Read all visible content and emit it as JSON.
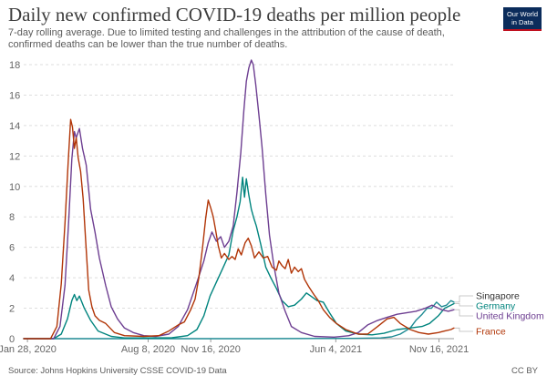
{
  "header": {
    "title": "Daily new confirmed COVID-19 deaths per million people",
    "subtitle": "7-day rolling average. Due to limited testing and challenges in the attribution of the cause of death, confirmed deaths can be lower than the true number of deaths.",
    "logo_line1": "Our World",
    "logo_line2": "in Data"
  },
  "footer": {
    "source": "Source: Johns Hopkins University CSSE COVID-19 Data",
    "license": "CC BY"
  },
  "chart_data": {
    "type": "line",
    "title": "Daily new confirmed COVID-19 deaths per million people",
    "subtitle": "7-day rolling average. Due to limited testing and challenges in the attribution of the cause of death, confirmed deaths can be lower than the true number of deaths.",
    "xlabel": "",
    "ylabel": "",
    "ylim": [
      0,
      18
    ],
    "xlim": [
      "2020-01-22",
      "2021-12-10"
    ],
    "yticks": [
      0,
      2,
      4,
      6,
      8,
      10,
      12,
      14,
      16,
      18
    ],
    "xticks": [
      {
        "date": "2020-01-28",
        "label": "Jan 28, 2020"
      },
      {
        "date": "2020-08-08",
        "label": "Aug 8, 2020"
      },
      {
        "date": "2020-11-16",
        "label": "Nov 16, 2020"
      },
      {
        "date": "2021-06-04",
        "label": "Jun 4, 2021"
      },
      {
        "date": "2021-11-16",
        "label": "Nov 16, 2021"
      }
    ],
    "grid": true,
    "legend": "right (labels at line ends)",
    "series": [
      {
        "name": "Singapore",
        "color": "#1e8a93",
        "points": [
          [
            "2020-01-22",
            0
          ],
          [
            "2020-06-01",
            0
          ],
          [
            "2021-02-01",
            0
          ],
          [
            "2021-07-01",
            0.02
          ],
          [
            "2021-08-15",
            0.05
          ],
          [
            "2021-09-01",
            0.12
          ],
          [
            "2021-09-15",
            0.3
          ],
          [
            "2021-10-01",
            0.7
          ],
          [
            "2021-10-10",
            1.2
          ],
          [
            "2021-10-20",
            1.6
          ],
          [
            "2021-10-28",
            2.0
          ],
          [
            "2021-11-04",
            2.0
          ],
          [
            "2021-11-12",
            2.4
          ],
          [
            "2021-11-20",
            2.1
          ],
          [
            "2021-11-28",
            2.2
          ],
          [
            "2021-12-05",
            2.5
          ],
          [
            "2021-12-10",
            2.4
          ]
        ]
      },
      {
        "name": "Germany",
        "color": "#00847e",
        "points": [
          [
            "2020-01-22",
            0
          ],
          [
            "2020-03-10",
            0
          ],
          [
            "2020-03-22",
            0.3
          ],
          [
            "2020-04-01",
            1.3
          ],
          [
            "2020-04-08",
            2.5
          ],
          [
            "2020-04-12",
            2.9
          ],
          [
            "2020-04-16",
            2.5
          ],
          [
            "2020-04-20",
            2.8
          ],
          [
            "2020-04-28",
            2.0
          ],
          [
            "2020-05-08",
            1.2
          ],
          [
            "2020-05-20",
            0.5
          ],
          [
            "2020-06-10",
            0.15
          ],
          [
            "2020-07-01",
            0.05
          ],
          [
            "2020-08-01",
            0.05
          ],
          [
            "2020-09-15",
            0.06
          ],
          [
            "2020-10-10",
            0.2
          ],
          [
            "2020-10-25",
            0.6
          ],
          [
            "2020-11-05",
            1.5
          ],
          [
            "2020-11-15",
            2.8
          ],
          [
            "2020-11-25",
            3.7
          ],
          [
            "2020-12-05",
            4.6
          ],
          [
            "2020-12-15",
            5.5
          ],
          [
            "2020-12-22",
            7.1
          ],
          [
            "2020-12-28",
            8.0
          ],
          [
            "2021-01-02",
            9.0
          ],
          [
            "2021-01-06",
            10.6
          ],
          [
            "2021-01-09",
            9.3
          ],
          [
            "2021-01-12",
            10.5
          ],
          [
            "2021-01-16",
            9.4
          ],
          [
            "2021-01-20",
            8.5
          ],
          [
            "2021-01-24",
            7.9
          ],
          [
            "2021-01-28",
            7.4
          ],
          [
            "2021-02-04",
            6.2
          ],
          [
            "2021-02-12",
            4.7
          ],
          [
            "2021-02-20",
            4.0
          ],
          [
            "2021-03-01",
            3.3
          ],
          [
            "2021-03-10",
            2.5
          ],
          [
            "2021-03-20",
            2.1
          ],
          [
            "2021-03-30",
            2.2
          ],
          [
            "2021-04-10",
            2.6
          ],
          [
            "2021-04-18",
            3.0
          ],
          [
            "2021-04-25",
            2.8
          ],
          [
            "2021-05-05",
            2.5
          ],
          [
            "2021-05-15",
            2.4
          ],
          [
            "2021-05-25",
            1.7
          ],
          [
            "2021-06-05",
            1.0
          ],
          [
            "2021-06-20",
            0.5
          ],
          [
            "2021-07-10",
            0.3
          ],
          [
            "2021-08-01",
            0.25
          ],
          [
            "2021-08-20",
            0.35
          ],
          [
            "2021-09-10",
            0.6
          ],
          [
            "2021-10-01",
            0.7
          ],
          [
            "2021-10-20",
            0.8
          ],
          [
            "2021-11-01",
            1.0
          ],
          [
            "2021-11-15",
            1.5
          ],
          [
            "2021-11-25",
            2.0
          ],
          [
            "2021-12-05",
            2.2
          ],
          [
            "2021-12-10",
            2.3
          ]
        ]
      },
      {
        "name": "United Kingdom",
        "color": "#6d3e91",
        "points": [
          [
            "2020-01-22",
            0
          ],
          [
            "2020-03-10",
            0
          ],
          [
            "2020-03-20",
            0.8
          ],
          [
            "2020-03-28",
            3.5
          ],
          [
            "2020-04-03",
            7.8
          ],
          [
            "2020-04-08",
            11.8
          ],
          [
            "2020-04-12",
            13.6
          ],
          [
            "2020-04-15",
            13.2
          ],
          [
            "2020-04-20",
            13.8
          ],
          [
            "2020-04-25",
            12.5
          ],
          [
            "2020-05-01",
            11.4
          ],
          [
            "2020-05-08",
            8.5
          ],
          [
            "2020-05-15",
            7.0
          ],
          [
            "2020-05-22",
            5.3
          ],
          [
            "2020-06-01",
            3.5
          ],
          [
            "2020-06-10",
            2.1
          ],
          [
            "2020-06-20",
            1.3
          ],
          [
            "2020-07-01",
            0.7
          ],
          [
            "2020-07-15",
            0.4
          ],
          [
            "2020-08-01",
            0.2
          ],
          [
            "2020-08-20",
            0.15
          ],
          [
            "2020-09-10",
            0.3
          ],
          [
            "2020-09-25",
            0.8
          ],
          [
            "2020-10-10",
            1.9
          ],
          [
            "2020-10-25",
            3.7
          ],
          [
            "2020-11-05",
            5.1
          ],
          [
            "2020-11-12",
            6.3
          ],
          [
            "2020-11-18",
            7.0
          ],
          [
            "2020-11-25",
            6.4
          ],
          [
            "2020-12-02",
            6.7
          ],
          [
            "2020-12-08",
            6.0
          ],
          [
            "2020-12-15",
            6.4
          ],
          [
            "2020-12-22",
            7.4
          ],
          [
            "2020-12-28",
            9.6
          ],
          [
            "2021-01-03",
            12.2
          ],
          [
            "2021-01-08",
            15.0
          ],
          [
            "2021-01-12",
            16.9
          ],
          [
            "2021-01-16",
            17.8
          ],
          [
            "2021-01-20",
            18.3
          ],
          [
            "2021-01-23",
            18.0
          ],
          [
            "2021-01-27",
            16.7
          ],
          [
            "2021-02-01",
            14.7
          ],
          [
            "2021-02-06",
            12.6
          ],
          [
            "2021-02-12",
            9.5
          ],
          [
            "2021-02-18",
            6.8
          ],
          [
            "2021-02-25",
            4.8
          ],
          [
            "2021-03-05",
            3.0
          ],
          [
            "2021-03-15",
            1.8
          ],
          [
            "2021-03-25",
            0.8
          ],
          [
            "2021-04-10",
            0.4
          ],
          [
            "2021-05-01",
            0.15
          ],
          [
            "2021-06-01",
            0.1
          ],
          [
            "2021-06-25",
            0.2
          ],
          [
            "2021-07-10",
            0.4
          ],
          [
            "2021-07-25",
            0.9
          ],
          [
            "2021-08-10",
            1.2
          ],
          [
            "2021-08-25",
            1.4
          ],
          [
            "2021-09-10",
            1.6
          ],
          [
            "2021-09-25",
            1.7
          ],
          [
            "2021-10-10",
            1.8
          ],
          [
            "2021-10-25",
            2.0
          ],
          [
            "2021-11-05",
            2.2
          ],
          [
            "2021-11-20",
            1.9
          ],
          [
            "2021-12-01",
            1.8
          ],
          [
            "2021-12-10",
            1.9
          ]
        ]
      },
      {
        "name": "France",
        "color": "#b13507",
        "points": [
          [
            "2020-01-22",
            0
          ],
          [
            "2020-03-05",
            0
          ],
          [
            "2020-03-15",
            0.8
          ],
          [
            "2020-03-22",
            3.6
          ],
          [
            "2020-03-28",
            7.6
          ],
          [
            "2020-04-02",
            11.5
          ],
          [
            "2020-04-06",
            14.4
          ],
          [
            "2020-04-09",
            13.9
          ],
          [
            "2020-04-12",
            12.5
          ],
          [
            "2020-04-15",
            13.2
          ],
          [
            "2020-04-18",
            11.9
          ],
          [
            "2020-04-22",
            11.0
          ],
          [
            "2020-04-26",
            9.2
          ],
          [
            "2020-04-30",
            6.5
          ],
          [
            "2020-05-05",
            3.2
          ],
          [
            "2020-05-10",
            2.1
          ],
          [
            "2020-05-15",
            1.5
          ],
          [
            "2020-05-22",
            1.2
          ],
          [
            "2020-06-01",
            1.0
          ],
          [
            "2020-06-15",
            0.4
          ],
          [
            "2020-07-01",
            0.2
          ],
          [
            "2020-08-01",
            0.15
          ],
          [
            "2020-08-25",
            0.2
          ],
          [
            "2020-09-10",
            0.5
          ],
          [
            "2020-09-25",
            0.9
          ],
          [
            "2020-10-05",
            1.1
          ],
          [
            "2020-10-15",
            1.9
          ],
          [
            "2020-10-22",
            2.6
          ],
          [
            "2020-10-28",
            4.0
          ],
          [
            "2020-11-03",
            6.0
          ],
          [
            "2020-11-08",
            7.9
          ],
          [
            "2020-11-12",
            9.1
          ],
          [
            "2020-11-16",
            8.6
          ],
          [
            "2020-11-20",
            8.0
          ],
          [
            "2020-11-24",
            7.1
          ],
          [
            "2020-11-28",
            6.1
          ],
          [
            "2020-12-03",
            5.3
          ],
          [
            "2020-12-08",
            5.6
          ],
          [
            "2020-12-15",
            5.2
          ],
          [
            "2020-12-20",
            5.4
          ],
          [
            "2020-12-25",
            5.2
          ],
          [
            "2020-12-30",
            5.9
          ],
          [
            "2021-01-04",
            5.5
          ],
          [
            "2021-01-10",
            6.3
          ],
          [
            "2021-01-15",
            6.6
          ],
          [
            "2021-01-20",
            6.1
          ],
          [
            "2021-01-25",
            5.3
          ],
          [
            "2021-02-01",
            5.7
          ],
          [
            "2021-02-08",
            5.3
          ],
          [
            "2021-02-15",
            5.4
          ],
          [
            "2021-02-22",
            4.7
          ],
          [
            "2021-03-01",
            4.5
          ],
          [
            "2021-03-05",
            5.1
          ],
          [
            "2021-03-10",
            4.8
          ],
          [
            "2021-03-15",
            4.6
          ],
          [
            "2021-03-20",
            5.2
          ],
          [
            "2021-03-25",
            4.3
          ],
          [
            "2021-03-30",
            4.7
          ],
          [
            "2021-04-05",
            4.4
          ],
          [
            "2021-04-10",
            4.6
          ],
          [
            "2021-04-15",
            3.9
          ],
          [
            "2021-04-22",
            3.4
          ],
          [
            "2021-04-30",
            2.9
          ],
          [
            "2021-05-07",
            2.5
          ],
          [
            "2021-05-15",
            1.9
          ],
          [
            "2021-05-25",
            1.4
          ],
          [
            "2021-06-05",
            1.0
          ],
          [
            "2021-06-20",
            0.6
          ],
          [
            "2021-07-10",
            0.3
          ],
          [
            "2021-07-25",
            0.3
          ],
          [
            "2021-08-10",
            0.8
          ],
          [
            "2021-08-25",
            1.3
          ],
          [
            "2021-09-05",
            1.4
          ],
          [
            "2021-09-15",
            1.0
          ],
          [
            "2021-10-01",
            0.6
          ],
          [
            "2021-10-15",
            0.4
          ],
          [
            "2021-10-30",
            0.3
          ],
          [
            "2021-11-15",
            0.4
          ],
          [
            "2021-11-25",
            0.5
          ],
          [
            "2021-12-05",
            0.6
          ],
          [
            "2021-12-10",
            0.7
          ]
        ]
      }
    ]
  }
}
